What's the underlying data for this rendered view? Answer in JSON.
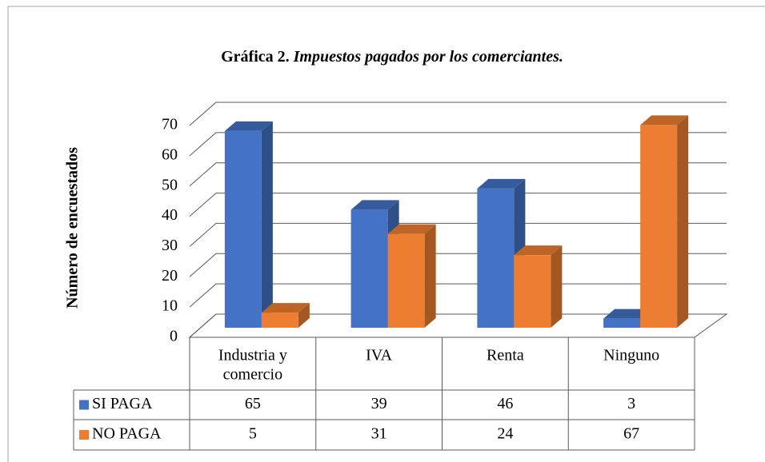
{
  "chart_data": {
    "type": "bar3d",
    "title": {
      "label": "Gráfica 2.",
      "text": "Impuestos pagados por los comerciantes."
    },
    "y_label": "Número de encuestados",
    "categories": [
      [
        "Industria y",
        "comercio"
      ],
      [
        "IVA"
      ],
      [
        "Renta"
      ],
      [
        "Ninguno"
      ]
    ],
    "series": [
      {
        "name": "SI PAGA",
        "color": "#4472c4",
        "values": [
          65,
          39,
          46,
          3
        ]
      },
      {
        "name": "NO PAGA",
        "color": "#ed7d31",
        "values": [
          5,
          31,
          24,
          67
        ]
      }
    ],
    "ylim": [
      0,
      70
    ],
    "yticks": [
      0,
      10,
      20,
      30,
      40,
      50,
      60,
      70
    ],
    "grid": true,
    "data_table": true
  }
}
